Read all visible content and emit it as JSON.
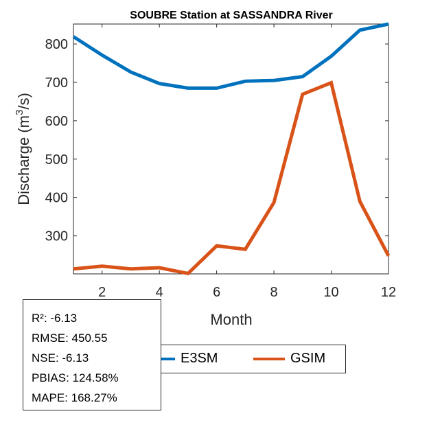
{
  "chart_data": {
    "type": "line",
    "title": "SOUBRE  Station at  SASSANDRA  River",
    "xlabel": "Month",
    "ylabel": "Discharge (m³/s)",
    "ylabel_parts": {
      "pre": "Discharge (m",
      "sup": "3",
      "post": "/s)"
    },
    "x": [
      1,
      2,
      3,
      4,
      5,
      6,
      7,
      8,
      9,
      10,
      11,
      12
    ],
    "xlim": [
      1,
      12
    ],
    "ylim": [
      201,
      852
    ],
    "xticks": [
      2,
      4,
      6,
      8,
      10,
      12
    ],
    "yticks": [
      300,
      400,
      500,
      600,
      700,
      800
    ],
    "grid": false,
    "legend_position": "bottom-outside",
    "series": [
      {
        "name": "E3SM",
        "color": "#0072BD",
        "values": [
          819,
          771,
          727,
          697,
          685,
          685,
          703,
          705,
          715,
          768,
          836,
          852
        ]
      },
      {
        "name": "GSIM",
        "color": "#D95319",
        "values": [
          214,
          221,
          214,
          217,
          202,
          274,
          265,
          387,
          669,
          699,
          390,
          248
        ]
      }
    ]
  },
  "stats": [
    "R²: -6.13",
    "RMSE: 450.55",
    "NSE: -6.13",
    "PBIAS: 124.58%",
    "MAPE: 168.27%"
  ]
}
